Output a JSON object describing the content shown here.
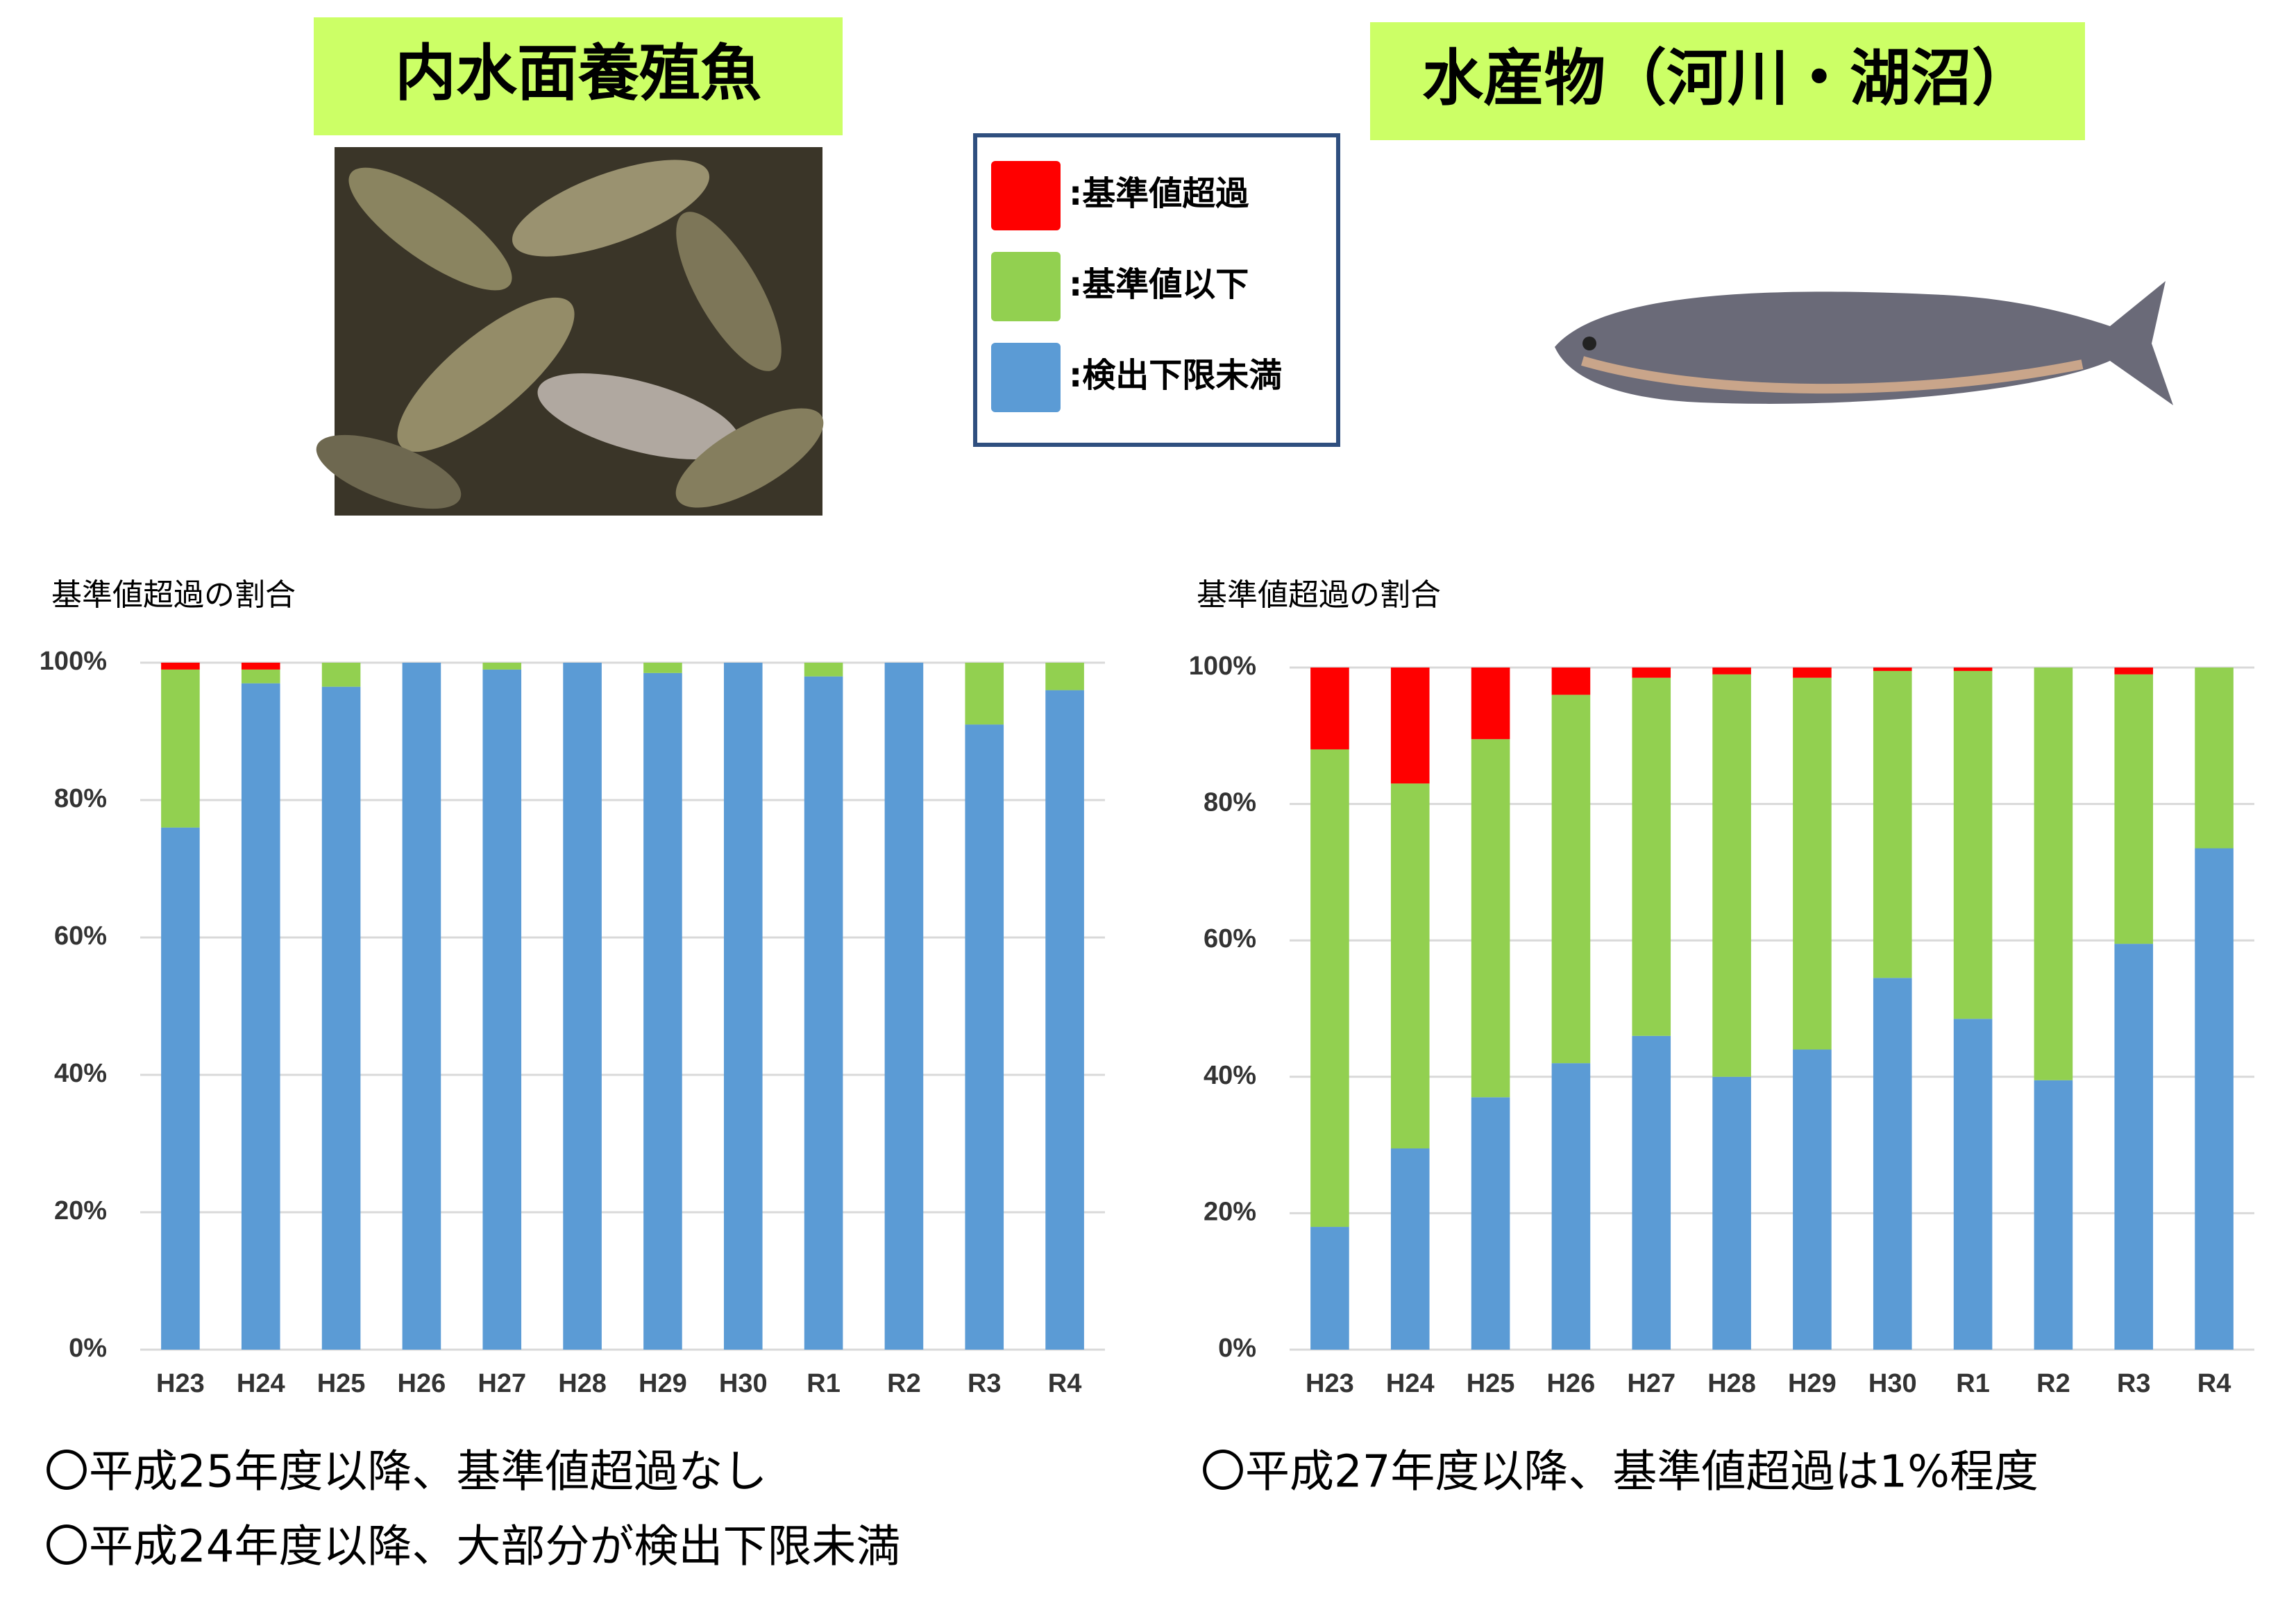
{
  "legend": [
    {
      "name": ":基準値超過",
      "color": "#ff0000"
    },
    {
      "name": ":基準値以下",
      "color": "#92d050"
    },
    {
      "name": ":検出下限未満",
      "color": "#5b9bd5"
    }
  ],
  "chart_data": [
    {
      "type": "bar",
      "stacked": true,
      "title": "内水面養殖魚",
      "y_label": "基準値超過の割合",
      "categories": [
        "H23",
        "H24",
        "H25",
        "H26",
        "H27",
        "H28",
        "H29",
        "H30",
        "R1",
        "R2",
        "R3",
        "R4"
      ],
      "series": [
        {
          "values": [
            1,
            1,
            0,
            0,
            0,
            0,
            0,
            0,
            0,
            0,
            0,
            0
          ]
        },
        {
          "values": [
            23,
            2,
            3.5,
            0,
            1,
            0,
            1.5,
            0,
            2,
            0,
            9,
            4
          ]
        },
        {
          "values": [
            76,
            97,
            96.5,
            100,
            99,
            100,
            98.5,
            100,
            98,
            100,
            91,
            96
          ]
        }
      ],
      "ylim": [
        0,
        100
      ],
      "yticks": [
        {
          "value": 0,
          "label": "0%"
        },
        {
          "value": 20,
          "label": "20%"
        },
        {
          "value": 40,
          "label": "40%"
        },
        {
          "value": 60,
          "label": "60%"
        },
        {
          "value": 80,
          "label": "80%"
        },
        {
          "value": 100,
          "label": "100%"
        }
      ],
      "grid": true,
      "notes": [
        "〇平成25年度以降、基準値超過なし",
        "〇平成24年度以降、大部分が検出下限未満"
      ]
    },
    {
      "type": "bar",
      "stacked": true,
      "title": "水産物（河川・湖沼）",
      "y_label": "基準値超過の割合",
      "categories": [
        "H23",
        "H24",
        "H25",
        "H26",
        "H27",
        "H28",
        "H29",
        "H30",
        "R1",
        "R2",
        "R3",
        "R4"
      ],
      "series": [
        {
          "values": [
            12,
            17,
            10.5,
            4,
            1.5,
            1,
            1.5,
            0.5,
            0.5,
            0,
            1,
            0
          ]
        },
        {
          "values": [
            70,
            53.5,
            52.5,
            54,
            52.5,
            59,
            54.5,
            45,
            51,
            60.5,
            39.5,
            26.5
          ]
        },
        {
          "values": [
            18,
            29.5,
            37,
            42,
            46,
            40,
            44,
            54.5,
            48.5,
            39.5,
            59.5,
            73.5
          ]
        }
      ],
      "ylim": [
        0,
        100
      ],
      "yticks": [
        {
          "value": 0,
          "label": "0%"
        },
        {
          "value": 20,
          "label": "20%"
        },
        {
          "value": 40,
          "label": "40%"
        },
        {
          "value": 60,
          "label": "60%"
        },
        {
          "value": 80,
          "label": "80%"
        },
        {
          "value": 100,
          "label": "100%"
        }
      ],
      "grid": true,
      "notes": [
        "〇平成27年度以降、基準値超過は1%程度"
      ]
    }
  ]
}
